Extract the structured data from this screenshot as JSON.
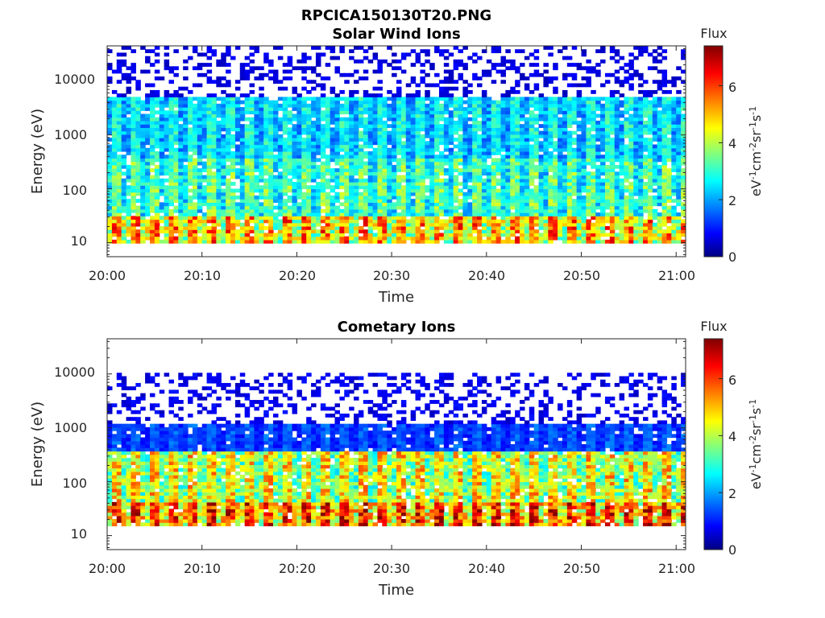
{
  "figure": {
    "title": "RPCICA150130T20.PNG"
  },
  "colorbar": {
    "label": "Flux",
    "unit_parts": [
      "eV",
      "-1",
      "cm",
      "-2",
      "sr",
      "-1",
      "s",
      "-1"
    ],
    "ticks": [
      "0",
      "2",
      "4",
      "6"
    ],
    "range": [
      0,
      7.4
    ],
    "colormap": "jet"
  },
  "colors": {
    "colormap_stops": [
      "#000080",
      "#0000ff",
      "#00ffff",
      "#ffff00",
      "#ff0000",
      "#800000"
    ]
  },
  "chart_data": [
    {
      "type": "heatmap",
      "title": "Solar Wind Ions",
      "xlabel": "Time",
      "ylabel": "Energy (eV)",
      "x_ticks": [
        "20:00",
        "20:10",
        "20:20",
        "20:30",
        "20:40",
        "20:50",
        "21:00"
      ],
      "x_range_minutes": [
        0,
        61
      ],
      "y_scale": "log",
      "y_ticks": [
        "10",
        "100",
        "1000",
        "10000"
      ],
      "y_range": [
        5.5,
        45000
      ],
      "colorbar_range": [
        0,
        7.4
      ],
      "energy_bands": [
        {
          "energy_range": [
            10,
            30
          ],
          "peak_flux": 5.5
        },
        {
          "energy_range": [
            30,
            400
          ],
          "peak_flux": 3.5
        },
        {
          "energy_range": [
            400,
            5000
          ],
          "peak_flux": 2.8
        },
        {
          "energy_range": [
            5000,
            45000
          ],
          "peak_flux": 0.7
        }
      ]
    },
    {
      "type": "heatmap",
      "title": "Cometary Ions",
      "xlabel": "Time",
      "ylabel": "Energy (eV)",
      "x_ticks": [
        "20:00",
        "20:10",
        "20:20",
        "20:30",
        "20:40",
        "20:50",
        "21:00"
      ],
      "x_range_minutes": [
        0,
        61
      ],
      "y_scale": "log",
      "y_ticks": [
        "10",
        "100",
        "1000",
        "10000"
      ],
      "y_range": [
        5.5,
        45000
      ],
      "colorbar_range": [
        0,
        7.4
      ],
      "energy_bands": [
        {
          "energy_range": [
            15,
            40
          ],
          "peak_flux": 6.3
        },
        {
          "energy_range": [
            40,
            400
          ],
          "peak_flux": 4.8
        },
        {
          "energy_range": [
            400,
            1200
          ],
          "peak_flux": 1.5
        },
        {
          "energy_range": [
            1200,
            10000
          ],
          "peak_flux": 0.8
        }
      ]
    }
  ]
}
